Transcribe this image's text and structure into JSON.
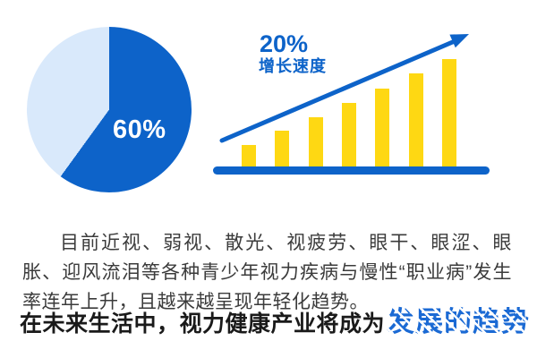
{
  "colors": {
    "primary_blue": "#0d63c9",
    "light_blue": "#d9e9fb",
    "bar_yellow": "#fed813",
    "text_dark": "#3b3b3b",
    "headline_black": "#1a1a1a",
    "highlight_blue": "#1b6ad4"
  },
  "chart_data": [
    {
      "type": "pie",
      "title": "",
      "slices": [
        {
          "label": "60%",
          "value": 60,
          "color": "#0d63c9"
        },
        {
          "label": "",
          "value": 40,
          "color": "#d9e9fb"
        }
      ],
      "legend_position": "none",
      "note": "dark blue 60% slice starts at 12 o'clock going clockwise; label shown inside slice"
    },
    {
      "type": "bar",
      "categories": [
        "",
        "",
        "",
        "",
        "",
        "",
        ""
      ],
      "values": [
        25,
        41,
        56,
        72,
        88,
        105,
        121
      ],
      "ylim": [
        0,
        165
      ],
      "title": "",
      "xlabel": "",
      "ylabel": "",
      "grid": false,
      "annotations": {
        "rate": "20%",
        "caption": "增长速度"
      },
      "note": "seven unlabeled yellow bars of steadily increasing relative height on a thick blue baseline with an ascending blue trend arrow"
    }
  ],
  "paragraph": {
    "text": "目前近视、弱视、散光、视疲劳、眼干、眼涩、眼胀、迎风流泪等各种青少年视力疾病与慢性“职业病”发生率连年上升，且越来越呈现年轻化趋势。"
  },
  "headline": {
    "prefix": "在未来生活中，视力健康产业将成为",
    "highlight": "发展的趋势"
  }
}
